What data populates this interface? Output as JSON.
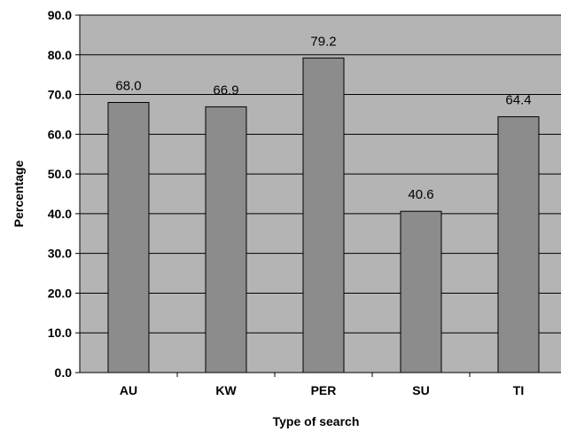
{
  "chart_data": {
    "type": "bar",
    "title": "",
    "xlabel": "Type of search",
    "ylabel": "Percentage",
    "categories": [
      "AU",
      "KW",
      "PER",
      "SU",
      "TI"
    ],
    "values": [
      68.0,
      66.9,
      79.2,
      40.6,
      64.4
    ],
    "value_labels": [
      "68.0",
      "66.9",
      "79.2",
      "40.6",
      "64.4"
    ],
    "ylim": [
      0,
      90
    ],
    "y_ticks": [
      "0.0",
      "10.0",
      "20.0",
      "30.0",
      "40.0",
      "50.0",
      "60.0",
      "70.0",
      "80.0",
      "90.0"
    ],
    "grid": true,
    "legend": "none"
  },
  "colors": {
    "plot_background": "#b4b4b4",
    "bar_fill": "#8c8c8c",
    "bar_stroke": "#000000",
    "grid": "#000000"
  }
}
